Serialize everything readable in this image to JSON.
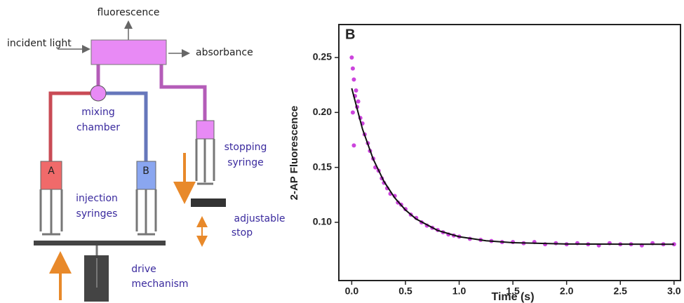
{
  "diagram": {
    "fluorescence": "fluorescence",
    "incident_light": "incident light",
    "absorbance": "absorbance",
    "mixing_chamber": [
      "mixing",
      "chamber"
    ],
    "syringe_a": "A",
    "syringe_b": "B",
    "injection_syringes": [
      "injection",
      "syringes"
    ],
    "stopping_syringe": [
      "stopping",
      "syringe"
    ],
    "adjustable_stop": [
      "adjustable",
      "stop"
    ],
    "drive_mechanism": [
      "drive",
      "mechanism"
    ]
  },
  "chart_data": {
    "type": "scatter",
    "title": "B",
    "xlabel": "Time (s)",
    "ylabel": "2-AP Fluorescence",
    "xlim": [
      -0.12,
      3.06
    ],
    "ylim": [
      0.047,
      0.28
    ],
    "xticks": [
      {
        "value": 0,
        "label": "0.0"
      },
      0.5,
      {
        "value": 1,
        "label": "1.0"
      },
      1.5,
      {
        "value": 2,
        "label": "2.0"
      },
      2.5,
      {
        "value": 3,
        "label": "3.0"
      }
    ],
    "yticks": [
      {
        "value": 0.1,
        "label": "0.10"
      },
      0.15,
      {
        "value": 0.2,
        "label": "0.20"
      },
      0.25
    ],
    "series": [
      {
        "type": "scatter",
        "color": "#cc44dd",
        "x": [
          0.0,
          0.01,
          0.01,
          0.02,
          0.02,
          0.03,
          0.04,
          0.05,
          0.06,
          0.08,
          0.1,
          0.12,
          0.15,
          0.17,
          0.2,
          0.22,
          0.25,
          0.28,
          0.3,
          0.33,
          0.36,
          0.4,
          0.43,
          0.46,
          0.5,
          0.55,
          0.6,
          0.65,
          0.7,
          0.75,
          0.8,
          0.85,
          0.9,
          0.95,
          1.0,
          1.1,
          1.2,
          1.3,
          1.4,
          1.5,
          1.6,
          1.7,
          1.8,
          1.9,
          2.0,
          2.1,
          2.2,
          2.3,
          2.4,
          2.5,
          2.6,
          2.7,
          2.8,
          2.9,
          3.0
        ],
        "values": [
          0.25,
          0.24,
          0.2,
          0.23,
          0.17,
          0.215,
          0.22,
          0.205,
          0.21,
          0.195,
          0.19,
          0.18,
          0.172,
          0.165,
          0.158,
          0.15,
          0.147,
          0.14,
          0.136,
          0.131,
          0.126,
          0.124,
          0.118,
          0.116,
          0.112,
          0.107,
          0.104,
          0.1,
          0.097,
          0.095,
          0.093,
          0.091,
          0.089,
          0.088,
          0.087,
          0.085,
          0.084,
          0.083,
          0.082,
          0.082,
          0.081,
          0.082,
          0.08,
          0.081,
          0.08,
          0.081,
          0.08,
          0.079,
          0.081,
          0.08,
          0.08,
          0.079,
          0.081,
          0.08,
          0.08
        ]
      },
      {
        "type": "line",
        "color": "#111111",
        "x": [
          0,
          0.1,
          0.2,
          0.3,
          0.4,
          0.5,
          0.6,
          0.8,
          1.0,
          1.25,
          1.5,
          2.0,
          2.5,
          3.0
        ],
        "values": [
          0.222,
          0.1849,
          0.1575,
          0.1372,
          0.1223,
          0.1112,
          0.103,
          0.0926,
          0.0869,
          0.0832,
          0.0815,
          0.0803,
          0.0801,
          0.08
        ]
      }
    ]
  }
}
